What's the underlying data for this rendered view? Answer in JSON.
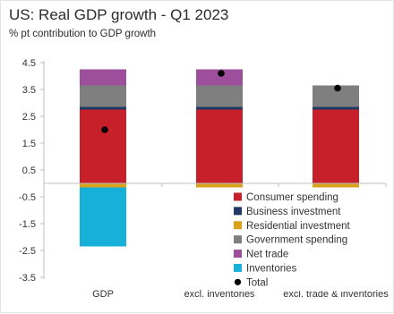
{
  "chart_data": {
    "type": "bar",
    "stacked": true,
    "title": "US: Real GDP growth - Q1 2023",
    "subtitle": "% pt contribution to GDP growth",
    "categories": [
      "GDP",
      "excl. inventories",
      "excl. trade & inventories"
    ],
    "ylim": [
      -3.5,
      4.5
    ],
    "yticks": [
      4.5,
      3.5,
      2.5,
      1.5,
      0.5,
      -0.5,
      -1.5,
      -2.5,
      -3.5
    ],
    "grid": false,
    "legend_position": "bottom-right",
    "series": [
      {
        "name": "Consumer spending",
        "color": "#c8202a",
        "values": [
          2.75,
          2.75,
          2.75
        ]
      },
      {
        "name": "Business investment",
        "color": "#1f3864",
        "values": [
          0.1,
          0.1,
          0.1
        ]
      },
      {
        "name": "Residential investment",
        "color": "#d9a21b",
        "values": [
          -0.15,
          -0.15,
          -0.15
        ]
      },
      {
        "name": "Government spending",
        "color": "#7f7f7f",
        "values": [
          0.8,
          0.8,
          0.8
        ]
      },
      {
        "name": "Net trade",
        "color": "#9e4f9c",
        "values": [
          0.6,
          0.6,
          0
        ]
      },
      {
        "name": "Inventories",
        "color": "#17b0d9",
        "values": [
          -2.2,
          0,
          0
        ]
      }
    ],
    "total": {
      "name": "Total",
      "color": "#000000",
      "values": [
        2.0,
        4.1,
        3.55
      ]
    }
  }
}
